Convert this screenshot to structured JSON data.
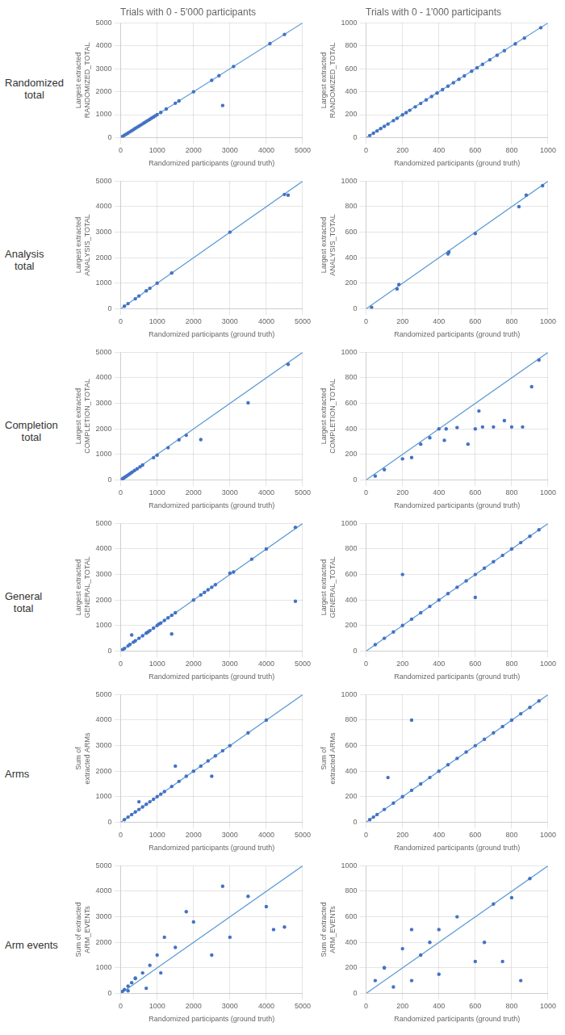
{
  "chart_data": [
    {
      "type": "scatter",
      "title": "Trials with 0 - 5'000 participants",
      "xlabel": "Randomized participants (ground truth)",
      "ylabel": "Largest extracted\nRANDOMIZED_TOTAL",
      "annotations": [
        "Randomized\ntotal"
      ],
      "xlim": [
        0,
        5000
      ],
      "ylim": [
        0,
        5000
      ],
      "xticks": [
        0,
        1000,
        2000,
        3000,
        4000,
        5000
      ],
      "yticks": [
        0,
        1000,
        2000,
        3000,
        4000,
        5000
      ],
      "grid": true,
      "series": [
        {
          "type": "line",
          "color": "#5B9BD5",
          "x": [
            0,
            5000
          ],
          "values": [
            0,
            5000
          ]
        },
        {
          "type": "scatter",
          "color": "#4472C4",
          "x": [
            50,
            100,
            150,
            200,
            250,
            300,
            350,
            400,
            450,
            500,
            550,
            600,
            650,
            700,
            750,
            800,
            850,
            900,
            950,
            1000,
            1100,
            1250,
            1500,
            1600,
            2000,
            2500,
            2700,
            3100,
            4100,
            4500,
            2800
          ],
          "values": [
            50,
            100,
            150,
            200,
            248,
            300,
            350,
            400,
            450,
            500,
            548,
            598,
            650,
            700,
            748,
            800,
            850,
            898,
            950,
            998,
            1098,
            1248,
            1498,
            1598,
            1998,
            2498,
            2698,
            3100,
            4100,
            4498,
            1400
          ]
        }
      ]
    },
    {
      "type": "scatter",
      "title": "Trials with 0 - 1'000 participants",
      "xlabel": "Randomized participants (ground truth)",
      "ylabel": "Largest extracted\nRANDOMIZED_TOTAL",
      "xlim": [
        0,
        1000
      ],
      "ylim": [
        0,
        1000
      ],
      "xticks": [
        0,
        200,
        400,
        600,
        800,
        1000
      ],
      "yticks": [
        0,
        200,
        400,
        600,
        800,
        1000
      ],
      "grid": true,
      "series": [
        {
          "type": "line",
          "color": "#5B9BD5",
          "x": [
            0,
            1000
          ],
          "values": [
            0,
            1000
          ]
        },
        {
          "type": "scatter",
          "color": "#4472C4",
          "x": [
            20,
            40,
            60,
            80,
            100,
            120,
            150,
            170,
            200,
            220,
            240,
            270,
            300,
            330,
            360,
            390,
            420,
            450,
            480,
            510,
            540,
            580,
            610,
            640,
            680,
            720,
            760,
            820,
            870,
            960
          ],
          "values": [
            18,
            38,
            58,
            78,
            98,
            118,
            148,
            168,
            198,
            218,
            238,
            268,
            298,
            328,
            358,
            388,
            418,
            448,
            478,
            508,
            538,
            578,
            608,
            638,
            678,
            718,
            758,
            818,
            868,
            958
          ]
        }
      ]
    },
    {
      "type": "scatter",
      "xlabel": "Randomized participants (ground truth)",
      "ylabel": "Largest extracted\nANALYSIS_TOTAL",
      "annotations": [
        "Analysis\ntotal"
      ],
      "xlim": [
        0,
        5000
      ],
      "ylim": [
        0,
        5000
      ],
      "xticks": [
        0,
        1000,
        2000,
        3000,
        4000,
        5000
      ],
      "yticks": [
        0,
        1000,
        2000,
        3000,
        4000,
        5000
      ],
      "grid": true,
      "series": [
        {
          "type": "line",
          "color": "#5B9BD5",
          "x": [
            0,
            5000
          ],
          "values": [
            0,
            5000
          ]
        },
        {
          "type": "scatter",
          "color": "#4472C4",
          "x": [
            100,
            200,
            400,
            500,
            700,
            800,
            1000,
            1400,
            3000,
            4600,
            4500
          ],
          "values": [
            100,
            200,
            390,
            500,
            700,
            800,
            1000,
            1400,
            3000,
            4450,
            4480
          ]
        }
      ]
    },
    {
      "type": "scatter",
      "xlabel": "Randomized participants (ground truth)",
      "ylabel": "Largest extracted\nANALYSIS_TOTAL",
      "xlim": [
        0,
        1000
      ],
      "ylim": [
        0,
        1000
      ],
      "xticks": [
        0,
        200,
        400,
        600,
        800,
        1000
      ],
      "yticks": [
        0,
        200,
        400,
        600,
        800,
        1000
      ],
      "grid": true,
      "series": [
        {
          "type": "line",
          "color": "#5B9BD5",
          "x": [
            0,
            1000
          ],
          "values": [
            0,
            1000
          ]
        },
        {
          "type": "scatter",
          "color": "#4472C4",
          "x": [
            30,
            170,
            180,
            450,
            455,
            600,
            840,
            880,
            970
          ],
          "values": [
            10,
            155,
            190,
            430,
            445,
            590,
            800,
            890,
            965
          ]
        }
      ]
    },
    {
      "type": "scatter",
      "xlabel": "Randomized participants (ground truth)",
      "ylabel": "Largest extracted\nCOMPLETION_TOTAL",
      "annotations": [
        "Completion\ntotal"
      ],
      "xlim": [
        0,
        5000
      ],
      "ylim": [
        0,
        5000
      ],
      "xticks": [
        0,
        1000,
        2000,
        3000,
        4000,
        5000
      ],
      "yticks": [
        0,
        1000,
        2000,
        3000,
        4000,
        5000
      ],
      "grid": true,
      "series": [
        {
          "type": "line",
          "color": "#5B9BD5",
          "x": [
            0,
            5000
          ],
          "values": [
            0,
            5000
          ]
        },
        {
          "type": "scatter",
          "color": "#4472C4",
          "x": [
            30,
            50,
            70,
            100,
            130,
            160,
            200,
            240,
            280,
            320,
            380,
            450,
            530,
            600,
            900,
            1000,
            1300,
            1600,
            1800,
            2200,
            3500,
            4600
          ],
          "values": [
            20,
            40,
            60,
            90,
            120,
            150,
            190,
            230,
            270,
            310,
            370,
            430,
            510,
            580,
            870,
            970,
            1260,
            1570,
            1750,
            1580,
            3020,
            4530
          ]
        }
      ]
    },
    {
      "type": "scatter",
      "xlabel": "Randomized participants (ground truth)",
      "ylabel": "Largest extracted\nCOMPLETION_TOTAL",
      "xlim": [
        0,
        1000
      ],
      "ylim": [
        0,
        1000
      ],
      "xticks": [
        0,
        200,
        400,
        600,
        800,
        1000
      ],
      "yticks": [
        0,
        200,
        400,
        600,
        800,
        1000
      ],
      "grid": true,
      "series": [
        {
          "type": "line",
          "color": "#5B9BD5",
          "x": [
            0,
            1000
          ],
          "values": [
            0,
            1000
          ]
        },
        {
          "type": "scatter",
          "color": "#4472C4",
          "x": [
            50,
            100,
            200,
            250,
            300,
            350,
            400,
            430,
            440,
            500,
            560,
            600,
            620,
            640,
            700,
            760,
            800,
            860,
            910,
            950
          ],
          "values": [
            30,
            80,
            165,
            175,
            280,
            330,
            400,
            310,
            400,
            410,
            280,
            400,
            540,
            415,
            415,
            465,
            415,
            415,
            730,
            940
          ]
        }
      ]
    },
    {
      "type": "scatter",
      "xlabel": "Randomized participants (ground truth)",
      "ylabel": "Largest extracted\nGENERAL_TOTAL",
      "annotations": [
        "General\ntotal"
      ],
      "xlim": [
        0,
        5000
      ],
      "ylim": [
        0,
        5000
      ],
      "xticks": [
        0,
        1000,
        2000,
        3000,
        4000,
        5000
      ],
      "yticks": [
        0,
        1000,
        2000,
        3000,
        4000,
        5000
      ],
      "grid": true,
      "series": [
        {
          "type": "line",
          "color": "#5B9BD5",
          "x": [
            0,
            5000
          ],
          "values": [
            0,
            5000
          ]
        },
        {
          "type": "scatter",
          "color": "#4472C4",
          "x": [
            50,
            100,
            200,
            250,
            350,
            400,
            500,
            600,
            700,
            750,
            800,
            900,
            1000,
            1050,
            1100,
            1200,
            1300,
            1400,
            1500,
            2000,
            2200,
            2300,
            2400,
            2500,
            2600,
            3000,
            3100,
            3600,
            4000,
            4800,
            300,
            1400,
            4800
          ],
          "values": [
            50,
            100,
            200,
            260,
            350,
            400,
            500,
            600,
            700,
            750,
            800,
            900,
            1000,
            1060,
            1100,
            1200,
            1300,
            1400,
            1500,
            2000,
            2200,
            2300,
            2400,
            2500,
            2600,
            3050,
            3100,
            3600,
            4000,
            4850,
            630,
            670,
            1950
          ]
        }
      ]
    },
    {
      "type": "scatter",
      "xlabel": "Randomized participants (ground truth)",
      "ylabel": "Largest extracted\nGENERAL_TOTAL",
      "xlim": [
        0,
        1000
      ],
      "ylim": [
        0,
        1000
      ],
      "xticks": [
        0,
        200,
        400,
        600,
        800,
        1000
      ],
      "yticks": [
        0,
        200,
        400,
        600,
        800,
        1000
      ],
      "grid": true,
      "series": [
        {
          "type": "line",
          "color": "#5B9BD5",
          "x": [
            0,
            1000
          ],
          "values": [
            0,
            1000
          ]
        },
        {
          "type": "scatter",
          "color": "#4472C4",
          "x": [
            50,
            100,
            150,
            200,
            250,
            300,
            350,
            400,
            450,
            500,
            550,
            600,
            650,
            700,
            750,
            800,
            850,
            900,
            950,
            200,
            600
          ],
          "values": [
            50,
            100,
            150,
            200,
            250,
            300,
            350,
            400,
            450,
            500,
            550,
            600,
            650,
            700,
            750,
            800,
            850,
            900,
            950,
            600,
            420
          ]
        }
      ]
    },
    {
      "type": "scatter",
      "xlabel": "Randomized participants (ground truth)",
      "ylabel": "Sum of\nextracted ARMs",
      "annotations": [
        "Arms"
      ],
      "xlim": [
        0,
        5000
      ],
      "ylim": [
        0,
        5000
      ],
      "xticks": [
        0,
        1000,
        2000,
        3000,
        4000,
        5000
      ],
      "yticks": [
        0,
        1000,
        2000,
        3000,
        4000,
        5000
      ],
      "grid": true,
      "series": [
        {
          "type": "line",
          "color": "#5B9BD5",
          "x": [
            0,
            5000
          ],
          "values": [
            0,
            5000
          ]
        },
        {
          "type": "scatter",
          "color": "#4472C4",
          "x": [
            100,
            200,
            300,
            400,
            500,
            600,
            700,
            800,
            900,
            1000,
            1100,
            1200,
            1400,
            1600,
            1800,
            2000,
            2200,
            2400,
            2600,
            2800,
            3000,
            3500,
            4000,
            500,
            1500,
            2500
          ],
          "values": [
            100,
            200,
            300,
            400,
            500,
            600,
            700,
            800,
            900,
            1000,
            1100,
            1200,
            1400,
            1600,
            1800,
            2000,
            2200,
            2400,
            2600,
            2800,
            3000,
            3500,
            4000,
            800,
            2200,
            1800
          ]
        }
      ]
    },
    {
      "type": "scatter",
      "xlabel": "Randomized participants (ground truth)",
      "ylabel": "Sum of\nextracted ARMs",
      "xlim": [
        0,
        1000
      ],
      "ylim": [
        0,
        1000
      ],
      "xticks": [
        0,
        200,
        400,
        600,
        800,
        1000
      ],
      "yticks": [
        0,
        200,
        400,
        600,
        800,
        1000
      ],
      "grid": true,
      "series": [
        {
          "type": "line",
          "color": "#5B9BD5",
          "x": [
            0,
            1000
          ],
          "values": [
            0,
            1000
          ]
        },
        {
          "type": "scatter",
          "color": "#4472C4",
          "x": [
            20,
            40,
            60,
            100,
            150,
            200,
            250,
            300,
            350,
            400,
            450,
            500,
            550,
            600,
            650,
            700,
            750,
            800,
            850,
            900,
            950,
            250,
            120
          ],
          "values": [
            20,
            40,
            60,
            100,
            150,
            200,
            250,
            300,
            350,
            400,
            450,
            500,
            550,
            600,
            650,
            700,
            750,
            800,
            850,
            900,
            950,
            800,
            350
          ]
        }
      ]
    },
    {
      "type": "scatter",
      "xlabel": "Randomized participants (ground truth)",
      "ylabel": "Sum of extracted\nARM_EVENTs",
      "annotations": [
        "Arm events"
      ],
      "xlim": [
        0,
        5000
      ],
      "ylim": [
        0,
        5000
      ],
      "xticks": [
        0,
        1000,
        2000,
        3000,
        4000,
        5000
      ],
      "yticks": [
        0,
        1000,
        2000,
        3000,
        4000,
        5000
      ],
      "grid": true,
      "series": [
        {
          "type": "line",
          "color": "#5B9BD5",
          "x": [
            0,
            5000
          ],
          "values": [
            0,
            5000
          ]
        },
        {
          "type": "scatter",
          "color": "#4472C4",
          "x": [
            50,
            100,
            200,
            300,
            400,
            600,
            800,
            1000,
            1200,
            1500,
            2000,
            2500,
            3000,
            3500,
            4000,
            4500,
            200,
            400,
            700,
            1100,
            1800,
            2800,
            4200
          ],
          "values": [
            80,
            150,
            280,
            420,
            580,
            800,
            1100,
            1500,
            2200,
            1800,
            2800,
            1500,
            2200,
            3800,
            3400,
            2600,
            100,
            600,
            200,
            800,
            3200,
            4200,
            2500
          ]
        }
      ]
    },
    {
      "type": "scatter",
      "xlabel": "Randomized participants (ground truth)",
      "ylabel": "Sum of extracted\nARM_EVENTs",
      "xlim": [
        0,
        1000
      ],
      "ylim": [
        0,
        1000
      ],
      "xticks": [
        0,
        200,
        400,
        600,
        800,
        1000
      ],
      "yticks": [
        0,
        200,
        400,
        600,
        800,
        1000
      ],
      "grid": true,
      "series": [
        {
          "type": "line",
          "color": "#5B9BD5",
          "x": [
            0,
            1000
          ],
          "values": [
            0,
            1000
          ]
        },
        {
          "type": "scatter",
          "color": "#4472C4",
          "x": [
            50,
            100,
            150,
            200,
            250,
            300,
            350,
            400,
            500,
            600,
            700,
            800,
            850,
            900,
            100,
            250,
            400,
            650,
            750
          ],
          "values": [
            100,
            200,
            50,
            350,
            100,
            300,
            400,
            500,
            600,
            250,
            700,
            750,
            100,
            900,
            200,
            500,
            150,
            400,
            250
          ]
        }
      ]
    }
  ]
}
